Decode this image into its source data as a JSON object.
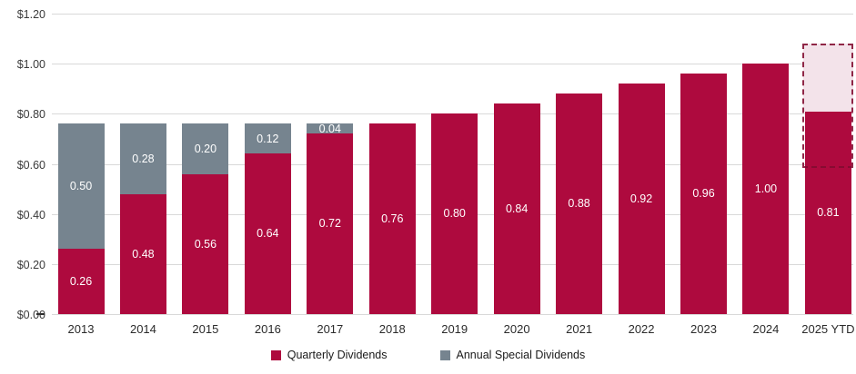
{
  "chart_data": {
    "type": "bar",
    "stacked": true,
    "title": "",
    "categories": [
      "2013",
      "2014",
      "2015",
      "2016",
      "2017",
      "2018",
      "2019",
      "2020",
      "2021",
      "2022",
      "2023",
      "2024",
      "2025 YTD"
    ],
    "series": [
      {
        "name": "Quarterly Dividends",
        "color": "#AE0A3E",
        "values": [
          0.26,
          0.48,
          0.56,
          0.64,
          0.72,
          0.76,
          0.8,
          0.84,
          0.88,
          0.92,
          0.96,
          1.0,
          0.81
        ]
      },
      {
        "name": "Annual Special Dividends",
        "color": "#76848F",
        "values": [
          0.5,
          0.28,
          0.2,
          0.12,
          0.04,
          0,
          0,
          0,
          0,
          0,
          0,
          0,
          0
        ]
      }
    ],
    "value_labels": {
      "quarterly": [
        "0.26",
        "0.48",
        "0.56",
        "0.64",
        "0.72",
        "0.76",
        "0.80",
        "0.84",
        "0.88",
        "0.92",
        "0.96",
        "1.00",
        "0.81"
      ],
      "special": [
        "0.50",
        "0.28",
        "0.20",
        "0.12",
        "0.04",
        "",
        "",
        "",
        "",
        "",
        "",
        "",
        ""
      ]
    },
    "y_axis": {
      "min": 0,
      "max": 1.2,
      "step": 0.2,
      "tick_labels": [
        "$0.00",
        "$0.20",
        "$0.40",
        "$0.60",
        "$0.80",
        "$1.00",
        "$1.20"
      ]
    },
    "projection": {
      "category": "2025 YTD",
      "box_top_value": 1.08,
      "box_bottom_value": 0.585,
      "fill_top_value": 1.08,
      "fill_bottom_value": 0.81,
      "fill_color": "#F3E3EA",
      "border_color": "#820C30"
    },
    "grid": {
      "horizontal": true,
      "color": "#D9D9D9"
    },
    "legend": {
      "position": "bottom",
      "items": [
        {
          "label": "Quarterly Dividends",
          "color": "#AE0A3E"
        },
        {
          "label": "Annual Special Dividends",
          "color": "#76848F"
        }
      ]
    }
  }
}
